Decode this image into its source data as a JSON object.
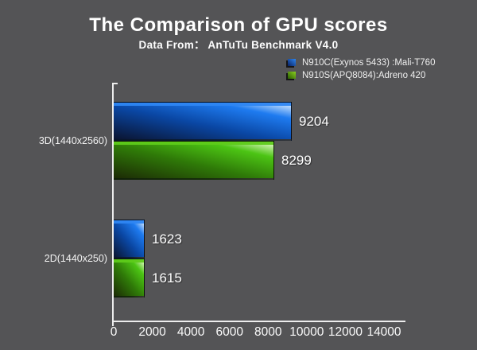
{
  "chart_data": {
    "type": "bar",
    "orientation": "horizontal",
    "title": "The Comparison of GPU scores",
    "subtitle": "Data From： AnTuTu Benchmark V4.0",
    "categories": [
      "3D(1440x2560)",
      "2D(1440x250)"
    ],
    "series": [
      {
        "name": "N910C(Exynos 5433) :Mali-T760",
        "color": "#1e7bf0",
        "gradient": [
          "#0a1430",
          "#0a47a4",
          "#1e7bf0",
          "#e8f4ff"
        ],
        "stripe": "#2e86f2",
        "values": [
          9204,
          1623
        ]
      },
      {
        "name": "N910S(APQ8084):Adreno 420",
        "color": "#4cc414",
        "gradient": [
          "#1c2a05",
          "#2f7a08",
          "#4cc414",
          "#f0ffd8"
        ],
        "stripe": "#5ecb1a",
        "values": [
          8299,
          1615
        ]
      }
    ],
    "value_labels": [
      [
        9204,
        1623
      ],
      [
        8299,
        1615
      ]
    ],
    "x_ticks": [
      0,
      2000,
      4000,
      6000,
      8000,
      10000,
      12000,
      14000
    ],
    "xlim": [
      0,
      14000
    ],
    "grid": false,
    "legend_position": "top-right",
    "colors": {
      "background": "#545456",
      "axis": "#ededed",
      "text": "#ffffff"
    }
  }
}
